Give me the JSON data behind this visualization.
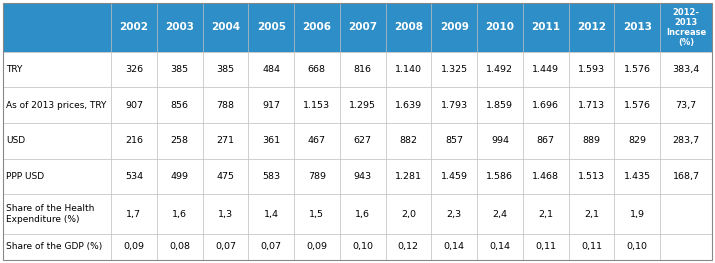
{
  "header_years": [
    "2002",
    "2003",
    "2004",
    "2005",
    "2006",
    "2007",
    "2008",
    "2009",
    "2010",
    "2011",
    "2012",
    "2013"
  ],
  "header_last": "2012-\n2013\nIncrease\n(%)",
  "row_labels": [
    "TRY",
    "As of 2013 prices, TRY",
    "USD",
    "PPP USD",
    "Share of the Health\nExpenditure (%)",
    "Share of the GDP (%)"
  ],
  "rows": [
    [
      "326",
      "385",
      "385",
      "484",
      "668",
      "816",
      "1.140",
      "1.325",
      "1.492",
      "1.449",
      "1.593",
      "1.576",
      "383,4"
    ],
    [
      "907",
      "856",
      "788",
      "917",
      "1.153",
      "1.295",
      "1.639",
      "1.793",
      "1.859",
      "1.696",
      "1.713",
      "1.576",
      "73,7"
    ],
    [
      "216",
      "258",
      "271",
      "361",
      "467",
      "627",
      "882",
      "857",
      "994",
      "867",
      "889",
      "829",
      "283,7"
    ],
    [
      "534",
      "499",
      "475",
      "583",
      "789",
      "943",
      "1.281",
      "1.459",
      "1.586",
      "1.468",
      "1.513",
      "1.435",
      "168,7"
    ],
    [
      "1,7",
      "1,6",
      "1,3",
      "1,4",
      "1,5",
      "1,6",
      "2,0",
      "2,3",
      "2,4",
      "2,1",
      "2,1",
      "1,9",
      ""
    ],
    [
      "0,09",
      "0,08",
      "0,07",
      "0,07",
      "0,09",
      "0,10",
      "0,12",
      "0,14",
      "0,14",
      "0,11",
      "0,11",
      "0,10",
      ""
    ]
  ],
  "header_color": "#2E8EC7",
  "border_color": "#BBBBBB",
  "header_font_size": 7.5,
  "data_font_size": 6.8,
  "label_font_size": 6.5
}
